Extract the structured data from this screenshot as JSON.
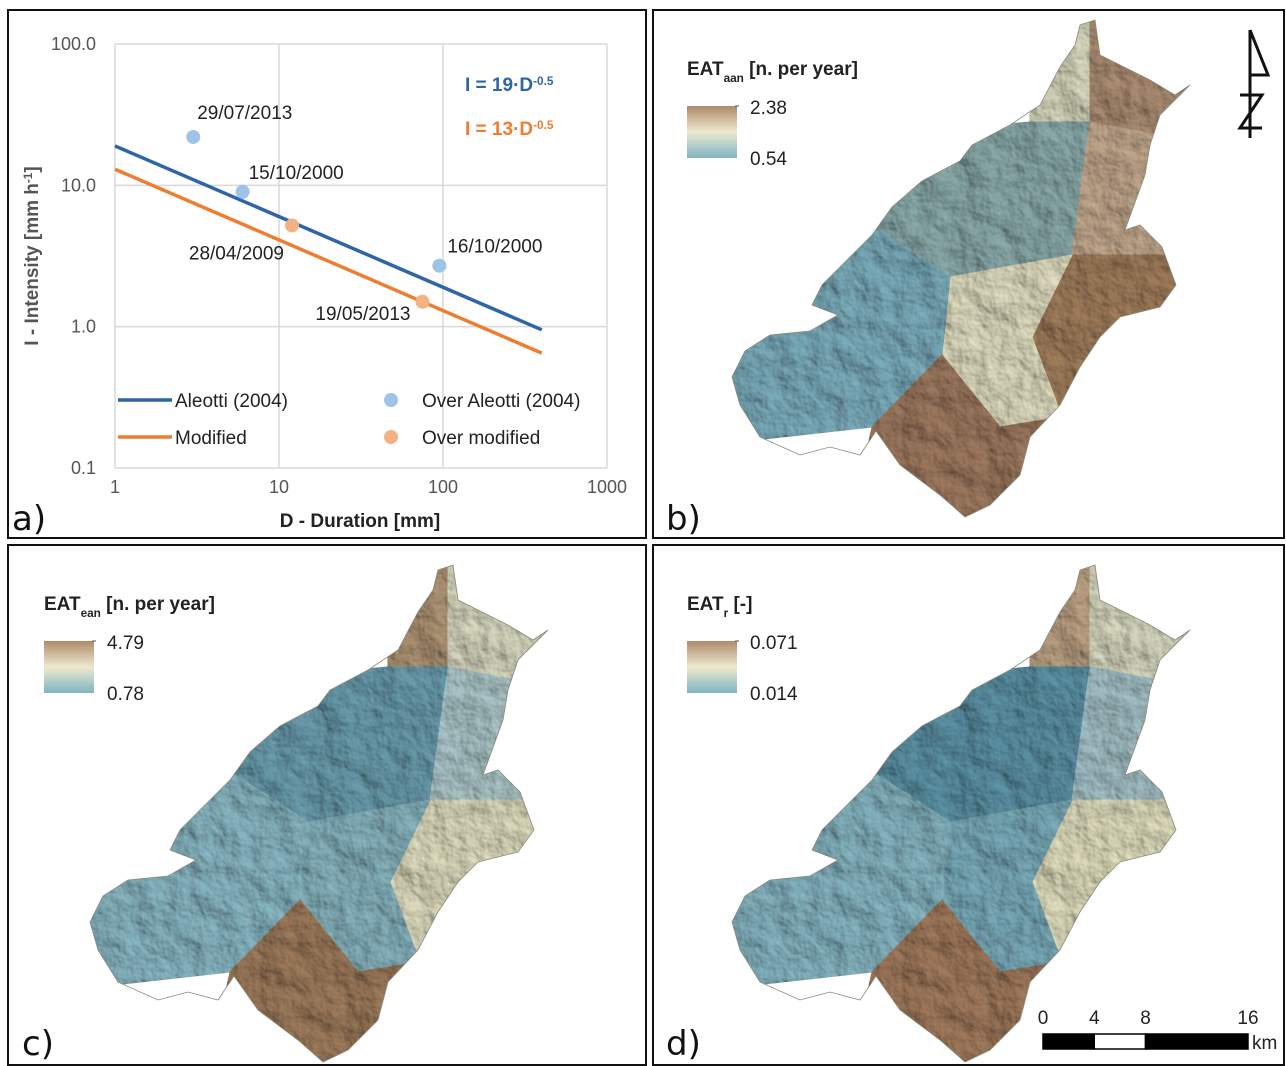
{
  "chart_data": {
    "type": "line",
    "xlabel": "D - Duration [mm]",
    "ylabel": {
      "text": "I - Intensity [mm h",
      "sup": "-1",
      "rest": "]"
    },
    "xlim": [
      1,
      1000
    ],
    "ylim": [
      0.1,
      100
    ],
    "log_x": true,
    "log_y": true,
    "grid": true,
    "xticks": [
      1,
      10,
      100,
      1000
    ],
    "yticks": [
      0.1,
      {
        "value": 1,
        "label": "1.0"
      },
      {
        "value": 10,
        "label": "10.0"
      },
      {
        "value": 100,
        "label": "100.0"
      }
    ],
    "legend": "lower center",
    "annotations": [
      {
        "text": "I = 19·D",
        "sup": "-0.5",
        "color": "#2e65a8"
      },
      {
        "text": "I = 13·D",
        "sup": "-0.5",
        "color": "#ed7d31"
      }
    ],
    "series": [
      {
        "name": "Aleotti (2004)",
        "type": "line",
        "color": "#2e65a8",
        "x": [
          1,
          400
        ],
        "values": [
          19,
          0.95
        ]
      },
      {
        "name": "Modified",
        "type": "line",
        "color": "#ed7d31",
        "x": [
          1,
          400
        ],
        "values": [
          13,
          0.65
        ]
      },
      {
        "name": "Over Aleotti (2004)",
        "type": "scatter",
        "color": "#9dc3e6",
        "x": [
          3,
          6,
          95
        ],
        "values": [
          22,
          9,
          2.7
        ],
        "point_labels": [
          "29/07/2013",
          "15/10/2000",
          "16/10/2000"
        ]
      },
      {
        "name": "Over modified",
        "type": "scatter",
        "color": "#f4b183",
        "x": [
          12,
          75
        ],
        "values": [
          5.2,
          1.5
        ],
        "point_labels": [
          "28/04/2009",
          "19/05/2013"
        ]
      }
    ]
  },
  "panel_labels": [
    "a)",
    "b)",
    "c)",
    "d)"
  ],
  "maps": [
    {
      "legend_title": {
        "text": "EAT",
        "sub": "aan",
        "rest": " [n. per year]"
      },
      "legend_max": 2.38,
      "legend_min": 0.54
    },
    {
      "legend_title": {
        "text": "EAT",
        "sub": "ean",
        "rest": " [n. per year]"
      },
      "legend_max": 4.79,
      "legend_min": 0.78
    },
    {
      "legend_title": {
        "text": "EAT",
        "sub": "r",
        "rest": " [-]"
      },
      "legend_max": 0.071,
      "legend_min": 0.014
    }
  ],
  "scale_bar": {
    "ticks": [
      0,
      4,
      8,
      16
    ],
    "unit": "km"
  }
}
